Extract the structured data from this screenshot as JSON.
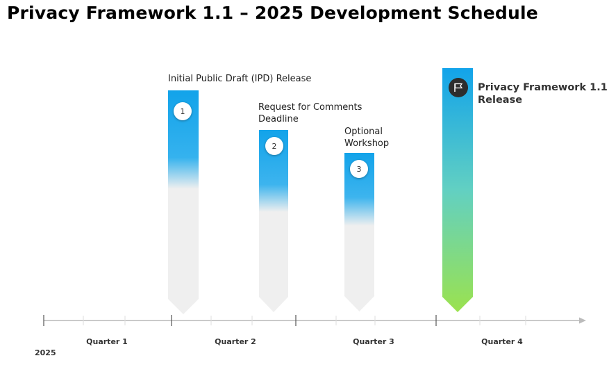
{
  "title": "Privacy Framework 1.1 – 2025 Development Schedule",
  "milestones": [
    {
      "number": "1",
      "label": "Initial Public Draft (IPD) Release"
    },
    {
      "number": "2",
      "label_line1": "Request for Comments",
      "label_line2": "Deadline"
    },
    {
      "number": "3",
      "label_line1": "Optional",
      "label_line2": "Workshop"
    },
    {
      "label_line1": "Privacy Framework 1.1",
      "label_line2": "Release",
      "icon": "flag-icon"
    }
  ],
  "timeline": {
    "quarters": [
      "Quarter 1",
      "Quarter 2",
      "Quarter 3",
      "Quarter 4"
    ],
    "year": "2025"
  },
  "colors": {
    "blue": "#12a3ea",
    "green": "#9be24e",
    "grey": "#efefef",
    "axis": "#aaaaaa"
  }
}
